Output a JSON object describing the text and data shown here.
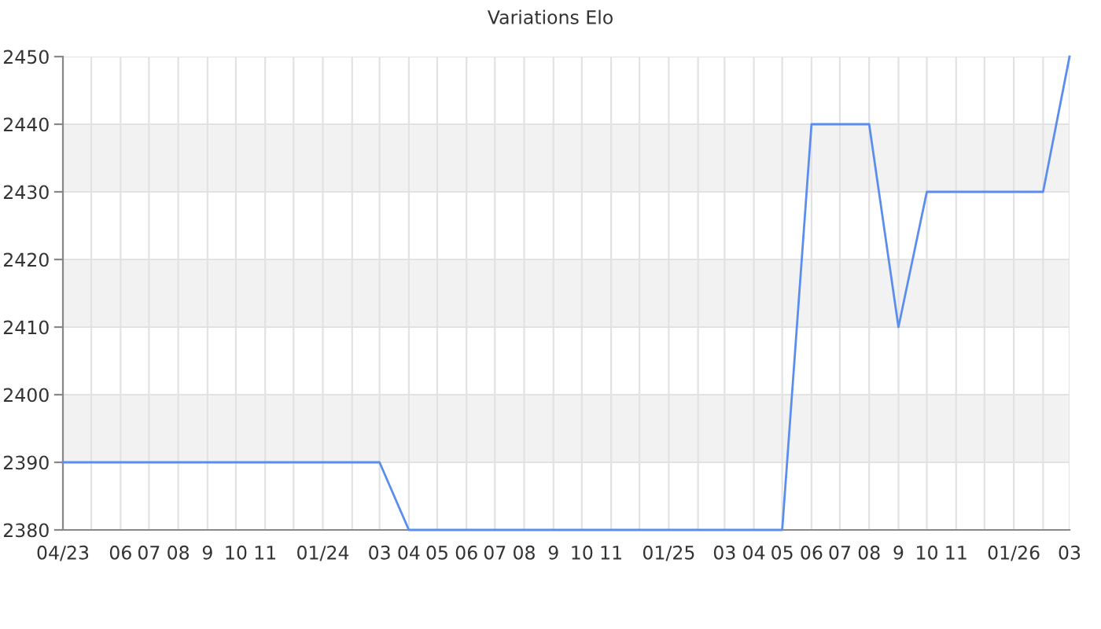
{
  "chart_data": {
    "type": "line",
    "title": "Variations Elo",
    "x": [
      "2023-04",
      "2023-05",
      "2023-06",
      "2023-07",
      "2023-08",
      "2023-09",
      "2023-10",
      "2023-11",
      "2023-12",
      "2024-01",
      "2024-02",
      "2024-03",
      "2024-04",
      "2024-05",
      "2024-06",
      "2024-07",
      "2024-08",
      "2024-09",
      "2024-10",
      "2024-11",
      "2024-12",
      "2025-01",
      "2025-02",
      "2025-03",
      "2025-04",
      "2025-05",
      "2025-06",
      "2025-07",
      "2025-08",
      "2025-09",
      "2025-10",
      "2025-11",
      "2025-12",
      "2026-01",
      "2026-02",
      "2026-03"
    ],
    "series": [
      {
        "color": "#5b8def",
        "values": [
          2390,
          2390,
          2390,
          2390,
          2390,
          2390,
          2390,
          2390,
          2390,
          2390,
          2390,
          2390,
          2380,
          2380,
          2380,
          2380,
          2380,
          2380,
          2380,
          2380,
          2380,
          2380,
          2380,
          2380,
          2380,
          2380,
          2440,
          2440,
          2440,
          2410,
          2430,
          2430,
          2430,
          2430,
          2430,
          2450
        ]
      }
    ],
    "xlim": [
      "2023-04",
      "2026-03"
    ],
    "ylim": [
      2380,
      2450
    ],
    "xticks": [
      {
        "value": "2023-04",
        "label": "04/23"
      },
      {
        "value": "2023-05",
        "label": null
      },
      {
        "value": "2023-06",
        "label": "06"
      },
      {
        "value": "2023-07",
        "label": "07"
      },
      {
        "value": "2023-08",
        "label": "08"
      },
      {
        "value": "2023-09",
        "label": "9"
      },
      {
        "value": "2023-10",
        "label": "10"
      },
      {
        "value": "2023-11",
        "label": "11"
      },
      {
        "value": "2023-12",
        "label": null
      },
      {
        "value": "2024-01",
        "label": "01/24"
      },
      {
        "value": "2024-02",
        "label": null
      },
      {
        "value": "2024-03",
        "label": "03"
      },
      {
        "value": "2024-04",
        "label": "04"
      },
      {
        "value": "2024-05",
        "label": "05"
      },
      {
        "value": "2024-06",
        "label": "06"
      },
      {
        "value": "2024-07",
        "label": "07"
      },
      {
        "value": "2024-08",
        "label": "08"
      },
      {
        "value": "2024-09",
        "label": "9"
      },
      {
        "value": "2024-10",
        "label": "10"
      },
      {
        "value": "2024-11",
        "label": "11"
      },
      {
        "value": "2024-12",
        "label": null
      },
      {
        "value": "2025-01",
        "label": "01/25"
      },
      {
        "value": "2025-02",
        "label": null
      },
      {
        "value": "2025-03",
        "label": "03"
      },
      {
        "value": "2025-04",
        "label": "04"
      },
      {
        "value": "2025-05",
        "label": "05"
      },
      {
        "value": "2025-06",
        "label": "06"
      },
      {
        "value": "2025-07",
        "label": "07"
      },
      {
        "value": "2025-08",
        "label": "08"
      },
      {
        "value": "2025-09",
        "label": "9"
      },
      {
        "value": "2025-10",
        "label": "10"
      },
      {
        "value": "2025-11",
        "label": "11"
      },
      {
        "value": "2025-12",
        "label": null
      },
      {
        "value": "2026-01",
        "label": "01/26"
      },
      {
        "value": "2026-02",
        "label": null
      },
      {
        "value": "2026-03",
        "label": "03"
      }
    ],
    "yticks": [
      2380,
      2390,
      2400,
      2410,
      2420,
      2430,
      2440,
      2450
    ],
    "grid": true,
    "bands": [
      {
        "axis": "y",
        "from": 2390,
        "to": 2400,
        "color": "#f2f2f2"
      },
      {
        "axis": "y",
        "from": 2410,
        "to": 2420,
        "color": "#f2f2f2"
      },
      {
        "axis": "y",
        "from": 2430,
        "to": 2440,
        "color": "#f2f2f2"
      }
    ]
  }
}
